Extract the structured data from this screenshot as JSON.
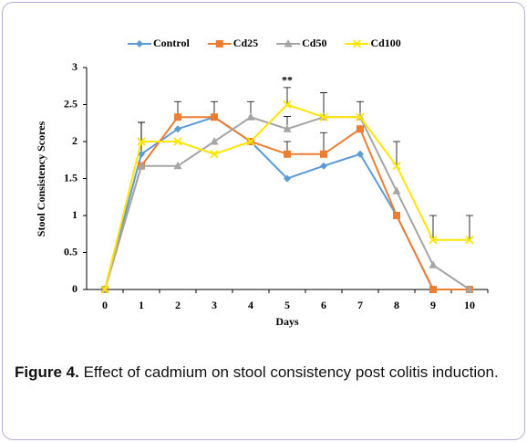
{
  "chart_data": {
    "type": "line",
    "x_label": "Days",
    "y_label": "Stool Consistency Scores",
    "categories": [
      "0",
      "1",
      "2",
      "3",
      "4",
      "5",
      "6",
      "7",
      "8",
      "9",
      "10"
    ],
    "ylim": [
      0,
      3
    ],
    "yticks": [
      0,
      0.5,
      1,
      1.5,
      2,
      2.5,
      3
    ],
    "grid": false,
    "legend": "top",
    "annotations": [
      {
        "text": "**",
        "x": 5
      }
    ],
    "series": [
      {
        "name": "Control",
        "color": "#5b9bd5",
        "marker": "diamond",
        "values": [
          0,
          1.83,
          2.17,
          2.33,
          2.0,
          1.5,
          1.67,
          1.83,
          1.0,
          0,
          0
        ],
        "errors": [
          null,
          0.43,
          null,
          null,
          null,
          null,
          null,
          null,
          null,
          null,
          null
        ]
      },
      {
        "name": "Cd25",
        "color": "#ed7d31",
        "marker": "square",
        "values": [
          0,
          1.67,
          2.33,
          2.33,
          2.0,
          1.83,
          1.83,
          2.17,
          1.0,
          0,
          0
        ],
        "errors": [
          null,
          null,
          0.21,
          0.21,
          null,
          0.17,
          0.29,
          null,
          null,
          null,
          null
        ]
      },
      {
        "name": "Cd50",
        "color": "#a5a5a5",
        "marker": "triangle",
        "values": [
          0,
          1.67,
          1.67,
          2.0,
          2.33,
          2.17,
          2.33,
          2.33,
          1.33,
          0.33,
          0
        ],
        "errors": [
          null,
          null,
          null,
          null,
          0.21,
          0.17,
          0.33,
          0.21,
          null,
          null,
          null
        ]
      },
      {
        "name": "Cd100",
        "color": "#ffe500",
        "marker": "x",
        "values": [
          0,
          2.0,
          2.0,
          1.83,
          2.0,
          2.5,
          2.33,
          2.33,
          1.67,
          0.67,
          0.67
        ],
        "errors": [
          null,
          0.26,
          null,
          null,
          null,
          0.23,
          null,
          null,
          0.33,
          0.33,
          0.33
        ]
      }
    ]
  },
  "caption": {
    "label": "Figure 4.",
    "text": "Effect of cadmium on stool consistency post colitis induction."
  }
}
